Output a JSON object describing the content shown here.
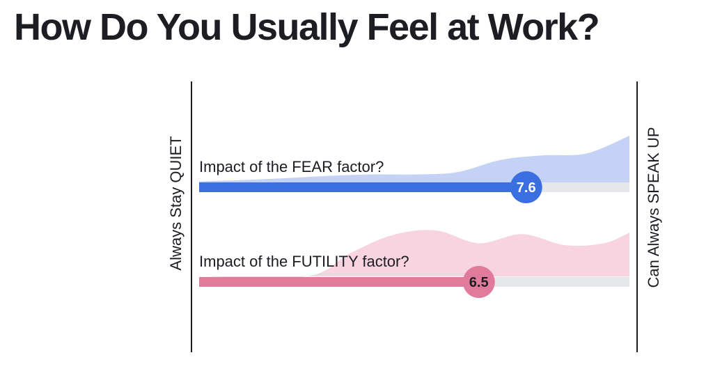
{
  "title": "How Do You Usually Feel at Work?",
  "chart_data": {
    "type": "bar",
    "title": "How Do You Usually Feel at Work?",
    "left_axis_label": "Always Stay QUIET",
    "right_axis_label": "Can Always SPEAK UP",
    "xlim": [
      0,
      10
    ],
    "grid": false,
    "legend": "none",
    "series": [
      {
        "label": "Impact of the FEAR factor?",
        "value": 7.6,
        "value_label": "7.6",
        "color": "#3b6fe0",
        "track_color": "#e6e7ea",
        "area_color": "#c3d2f5",
        "label_text_color": "#ffffff",
        "distribution": [
          [
            0,
            0.02
          ],
          [
            1,
            0.05
          ],
          [
            2,
            0.09
          ],
          [
            3,
            0.14
          ],
          [
            4,
            0.17
          ],
          [
            5,
            0.17
          ],
          [
            6,
            0.22
          ],
          [
            7,
            0.48
          ],
          [
            8,
            0.58
          ],
          [
            9,
            0.62
          ],
          [
            10,
            1.0
          ]
        ]
      },
      {
        "label": "Impact of the FUTILITY factor?",
        "value": 6.5,
        "value_label": "6.5",
        "color": "#e07b9b",
        "track_color": "#e6e7ea",
        "area_color": "#f8d4e0",
        "label_text_color": "#1c1c22",
        "distribution": [
          [
            0,
            0.0
          ],
          [
            2.5,
            0.0
          ],
          [
            3.5,
            0.5
          ],
          [
            4.5,
            0.9
          ],
          [
            5.5,
            1.0
          ],
          [
            6.5,
            0.72
          ],
          [
            7.5,
            0.92
          ],
          [
            8.5,
            0.68
          ],
          [
            9.4,
            0.72
          ],
          [
            10,
            0.95
          ]
        ]
      }
    ]
  }
}
